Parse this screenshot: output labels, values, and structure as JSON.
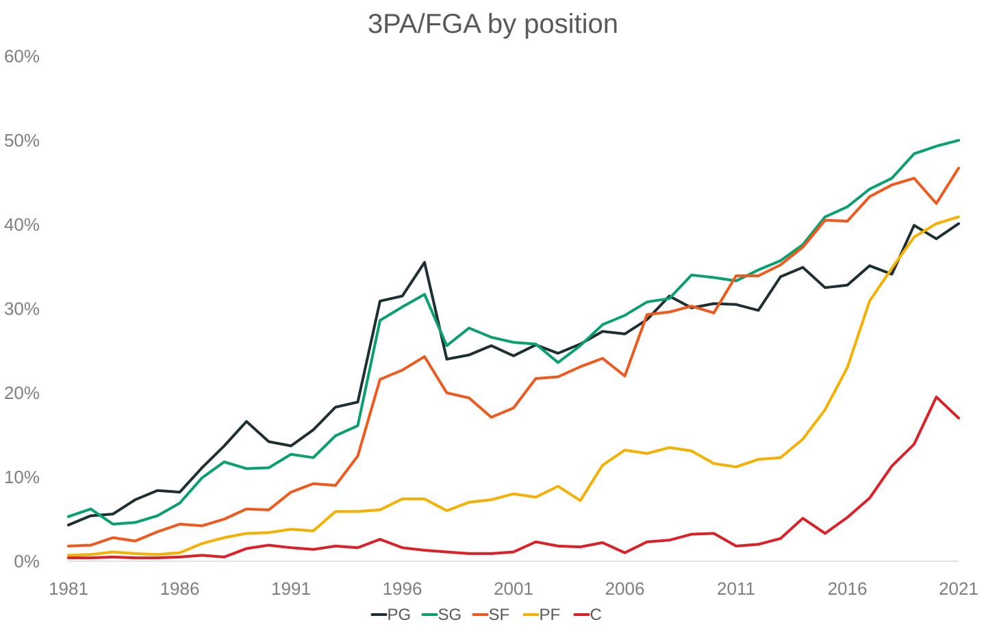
{
  "chart_data": {
    "type": "line",
    "title": "3PA/FGA by position",
    "xlabel": "",
    "ylabel": "",
    "x": [
      1981,
      1982,
      1983,
      1984,
      1985,
      1986,
      1987,
      1988,
      1989,
      1990,
      1991,
      1992,
      1993,
      1994,
      1995,
      1996,
      1997,
      1998,
      1999,
      2000,
      2001,
      2002,
      2003,
      2004,
      2005,
      2006,
      2007,
      2008,
      2009,
      2010,
      2011,
      2012,
      2013,
      2014,
      2015,
      2016,
      2017,
      2018,
      2019,
      2020,
      2021
    ],
    "xlim": [
      1981,
      2021
    ],
    "ylim": [
      0,
      60
    ],
    "x_ticks": [
      1981,
      1986,
      1991,
      1996,
      2001,
      2006,
      2011,
      2016,
      2021
    ],
    "x_tick_labels": [
      "1981",
      "1986",
      "1991",
      "1996",
      "2001",
      "2006",
      "2011",
      "2016",
      "2021"
    ],
    "y_ticks": [
      0,
      10,
      20,
      30,
      40,
      50,
      60
    ],
    "y_tick_labels": [
      "0%",
      "10%",
      "20%",
      "30%",
      "40%",
      "50%",
      "60%"
    ],
    "grid": false,
    "legend_position": "bottom",
    "series": [
      {
        "name": "PG",
        "color": "#1e2f33",
        "values": [
          4.3,
          5.4,
          5.6,
          7.3,
          8.4,
          8.2,
          11.1,
          13.7,
          16.6,
          14.2,
          13.7,
          15.6,
          18.3,
          18.9,
          30.9,
          31.5,
          35.5,
          24.0,
          24.5,
          25.6,
          24.4,
          25.7,
          24.7,
          25.8,
          27.3,
          27.0,
          28.7,
          31.5,
          30.1,
          30.6,
          30.5,
          29.8,
          33.8,
          34.9,
          32.5,
          32.8,
          35.1,
          34.1,
          39.9,
          38.3,
          40.1
        ]
      },
      {
        "name": "SG",
        "color": "#0aa06e",
        "values": [
          5.3,
          6.2,
          4.4,
          4.6,
          5.4,
          6.9,
          9.9,
          11.8,
          11.0,
          11.1,
          12.7,
          12.3,
          14.9,
          16.1,
          28.6,
          30.2,
          31.7,
          25.6,
          27.7,
          26.6,
          26.0,
          25.8,
          23.6,
          25.6,
          28.1,
          29.2,
          30.8,
          31.2,
          34.0,
          33.7,
          33.3,
          34.6,
          35.7,
          37.6,
          40.9,
          42.1,
          44.2,
          45.5,
          48.4,
          49.3,
          50.0
        ]
      },
      {
        "name": "SF",
        "color": "#f0591e",
        "values": [
          1.8,
          1.9,
          2.8,
          2.4,
          3.5,
          4.4,
          4.2,
          5.0,
          6.2,
          6.1,
          8.2,
          9.2,
          9.0,
          12.5,
          21.6,
          22.7,
          24.3,
          20.0,
          19.4,
          17.1,
          18.2,
          21.7,
          21.9,
          23.1,
          24.1,
          22.0,
          29.3,
          29.6,
          30.3,
          29.5,
          33.9,
          33.9,
          35.2,
          37.3,
          40.5,
          40.4,
          43.3,
          44.7,
          45.5,
          42.5,
          46.7
        ]
      },
      {
        "name": "PF",
        "color": "#f5b002",
        "values": [
          0.7,
          0.8,
          1.1,
          0.9,
          0.8,
          1.0,
          2.1,
          2.8,
          3.3,
          3.4,
          3.8,
          3.6,
          5.9,
          5.9,
          6.1,
          7.4,
          7.4,
          6.0,
          7.0,
          7.3,
          8.0,
          7.6,
          8.9,
          7.2,
          11.4,
          13.2,
          12.8,
          13.5,
          13.1,
          11.6,
          11.2,
          12.1,
          12.3,
          14.5,
          18.0,
          23.0,
          30.9,
          34.8,
          38.5,
          40.1,
          40.9
        ]
      },
      {
        "name": "C",
        "color": "#dc2028",
        "values": [
          0.4,
          0.4,
          0.5,
          0.4,
          0.4,
          0.5,
          0.7,
          0.5,
          1.5,
          1.9,
          1.6,
          1.4,
          1.8,
          1.6,
          2.6,
          1.6,
          1.3,
          1.1,
          0.9,
          0.9,
          1.1,
          2.3,
          1.8,
          1.7,
          2.2,
          1.0,
          2.3,
          2.5,
          3.2,
          3.3,
          1.8,
          2.0,
          2.7,
          5.1,
          3.3,
          5.2,
          7.5,
          11.3,
          13.9,
          19.5,
          17.0
        ]
      }
    ]
  }
}
